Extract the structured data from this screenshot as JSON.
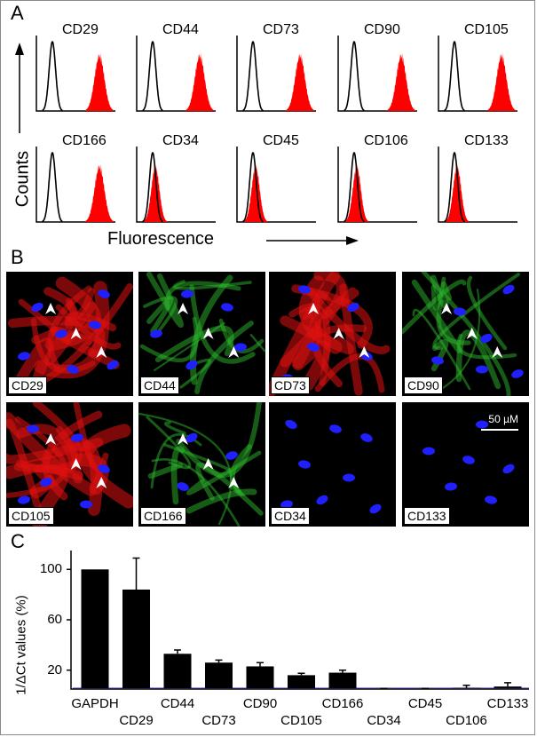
{
  "panel_a": {
    "letter": "A",
    "y_axis_label": "Counts",
    "x_axis_label": "Fluorescence",
    "histograms": [
      {
        "marker": "CD29",
        "positive": true
      },
      {
        "marker": "CD44",
        "positive": true
      },
      {
        "marker": "CD73",
        "positive": true
      },
      {
        "marker": "CD90",
        "positive": true
      },
      {
        "marker": "CD105",
        "positive": true
      },
      {
        "marker": "CD166",
        "positive": true
      },
      {
        "marker": "CD34",
        "positive": false
      },
      {
        "marker": "CD45",
        "positive": false
      },
      {
        "marker": "CD106",
        "positive": false
      },
      {
        "marker": "CD133",
        "positive": false
      }
    ],
    "colors": {
      "isotype": "#000000",
      "stained": "#ff0000"
    }
  },
  "panel_b": {
    "letter": "B",
    "scale_bar_label": "50 µM",
    "images": [
      {
        "marker": "CD29",
        "stain": "red"
      },
      {
        "marker": "CD44",
        "stain": "green"
      },
      {
        "marker": "CD73",
        "stain": "red"
      },
      {
        "marker": "CD90",
        "stain": "green"
      },
      {
        "marker": "CD105",
        "stain": "red"
      },
      {
        "marker": "CD166",
        "stain": "green"
      },
      {
        "marker": "CD34",
        "stain": "none"
      },
      {
        "marker": "CD133",
        "stain": "none"
      }
    ],
    "colors": {
      "red": "#e01010",
      "green": "#2bb82b",
      "nuclei": "#2020ff"
    }
  },
  "chart_data": {
    "type": "bar",
    "panel_letter": "C",
    "categories": [
      "GAPDH",
      "CD29",
      "CD44",
      "CD73",
      "CD90",
      "CD105",
      "CD166",
      "CD34",
      "CD45",
      "CD106",
      "CD133"
    ],
    "values": [
      100,
      84,
      33,
      26,
      23,
      16,
      18,
      5,
      5,
      6,
      7
    ],
    "errors": [
      0,
      25,
      3,
      2,
      3,
      1.5,
      2,
      0.5,
      0.5,
      2,
      3
    ],
    "ylabel": "1/ΔCt values (%)",
    "xlabel": "",
    "yticks": [
      20,
      60,
      100
    ],
    "ylim": [
      5,
      115
    ],
    "bar_color": "#000000",
    "axis_color": "#3a3aa0"
  }
}
